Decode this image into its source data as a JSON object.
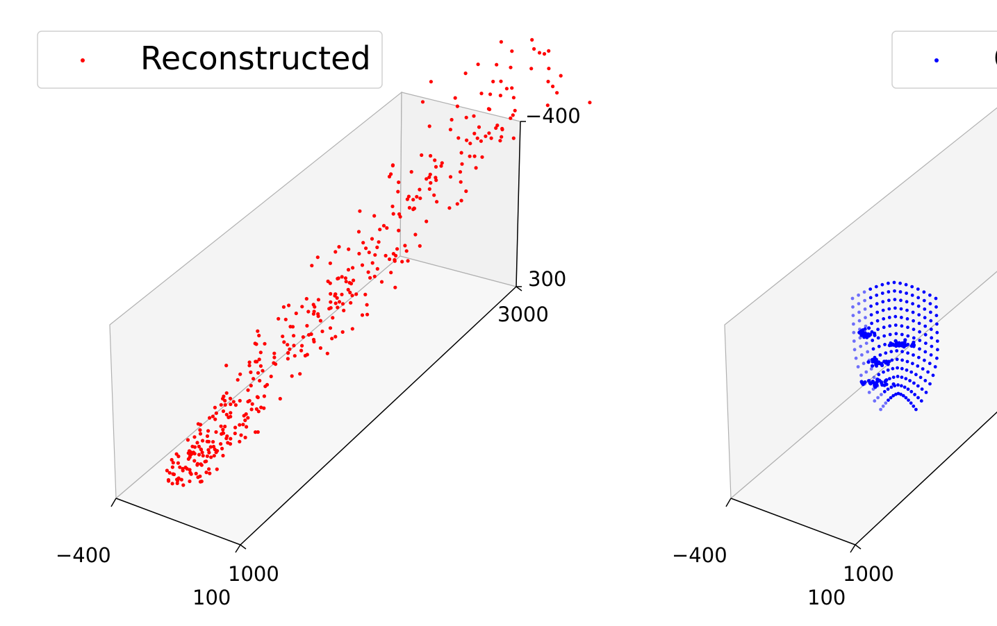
{
  "chart_data": [
    {
      "type": "scatter",
      "subtype": "3d-scatter",
      "legend": {
        "label": "Reconstructed",
        "placement": "top-left"
      },
      "color": "#ff0000",
      "axes": {
        "x": {
          "ticks": [
            "−400",
            "100"
          ],
          "range": [
            -400,
            100
          ]
        },
        "y": {
          "ticks": [
            "1000",
            "3000"
          ],
          "range": [
            1000,
            3000
          ]
        },
        "z": {
          "ticks": [
            "−400",
            "300"
          ],
          "range": [
            -400,
            300
          ]
        }
      },
      "grid": false,
      "points_generated": 420,
      "seed": 7
    },
    {
      "type": "scatter",
      "subtype": "3d-scatter",
      "legend": {
        "label": "O",
        "placement": "top-right"
      },
      "color": "#0000ff",
      "axes": {
        "x": {
          "ticks": [
            "−400",
            "100"
          ],
          "range": [
            -400,
            100
          ]
        },
        "y": {
          "ticks": [
            "1000"
          ],
          "range": [
            1000,
            3000
          ]
        }
      },
      "grid": false,
      "points_generated": 240,
      "seed": 11
    }
  ]
}
